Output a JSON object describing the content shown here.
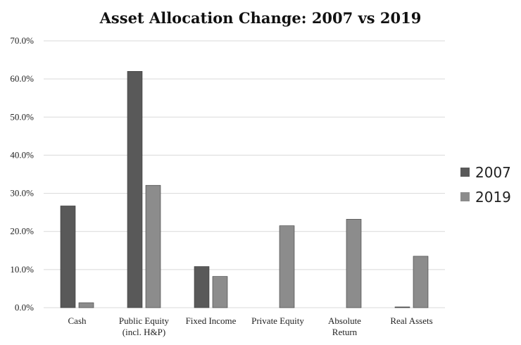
{
  "chart_data": {
    "type": "bar",
    "title": "Asset Allocation Change: 2007 vs 2019",
    "xlabel": "",
    "ylabel": "",
    "categories": [
      [
        "Cash"
      ],
      [
        "Public Equity",
        "(incl. H&P)"
      ],
      [
        "Fixed Income"
      ],
      [
        "Private Equity"
      ],
      [
        "Absolute",
        "Return"
      ],
      [
        "Real Assets"
      ]
    ],
    "series": [
      {
        "name": "2007",
        "color": "#595959",
        "values": [
          26.7,
          62.0,
          10.8,
          0.0,
          0.0,
          0.2
        ]
      },
      {
        "name": "2019",
        "color": "#8c8c8c",
        "values": [
          1.3,
          32.1,
          8.2,
          21.5,
          23.2,
          13.5
        ]
      }
    ],
    "ylim": [
      0,
      70
    ],
    "yticks": [
      "0.0%",
      "10.0%",
      "20.0%",
      "30.0%",
      "40.0%",
      "50.0%",
      "60.0%",
      "70.0%"
    ],
    "ytick_values": [
      0,
      10,
      20,
      30,
      40,
      50,
      60,
      70
    ],
    "grid": true,
    "legend_position": "right"
  }
}
